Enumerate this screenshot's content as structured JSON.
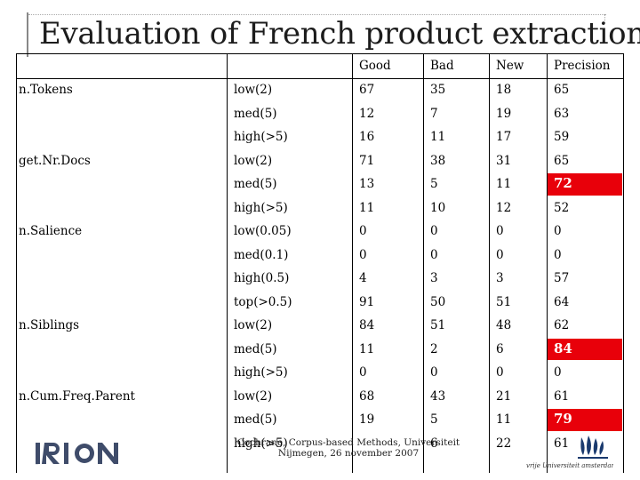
{
  "slide": {
    "title": "Evaluation of French product extraction",
    "footer_line1": "Cochrane, Corpus-based Methods, Universiteit",
    "footer_line2": "Nijmegen, 26 november 2007",
    "logo_left_text": "IRION",
    "logo_right_text": "vrije Universiteit amsterdam"
  },
  "table": {
    "headers": [
      "Good",
      "Bad",
      "New",
      "Precision"
    ],
    "groups": [
      {
        "name": "n.Tokens",
        "rows": [
          {
            "label": "low(2)",
            "values": [
              "67",
              "35",
              "18",
              "65"
            ]
          },
          {
            "label": "med(5)",
            "values": [
              "12",
              "7",
              "19",
              "63"
            ]
          },
          {
            "label": "high(>5)",
            "values": [
              "16",
              "11",
              "17",
              "59"
            ]
          }
        ]
      },
      {
        "name": "get.Nr.Docs",
        "rows": [
          {
            "label": "low(2)",
            "values": [
              "71",
              "38",
              "31",
              "65"
            ]
          },
          {
            "label": "med(5)",
            "values": [
              "13",
              "5",
              "11",
              "72"
            ]
          },
          {
            "label": "high(>5)",
            "values": [
              "11",
              "10",
              "12",
              "52"
            ]
          }
        ]
      },
      {
        "name": "n.Salience",
        "rows": [
          {
            "label": "low(0.05)",
            "values": [
              "0",
              "0",
              "0",
              "0"
            ]
          },
          {
            "label": "med(0.1)",
            "values": [
              "0",
              "0",
              "0",
              "0"
            ]
          },
          {
            "label": "high(0.5)",
            "values": [
              "4",
              "3",
              "3",
              "57"
            ]
          },
          {
            "label": "top(>0.5)",
            "values": [
              "91",
              "50",
              "51",
              "64"
            ]
          }
        ]
      },
      {
        "name": "n.Siblings",
        "rows": [
          {
            "label": "low(2)",
            "values": [
              "84",
              "51",
              "48",
              "62"
            ]
          },
          {
            "label": "med(5)",
            "values": [
              "11",
              "2",
              "6",
              "84"
            ]
          },
          {
            "label": "high(>5)",
            "values": [
              "0",
              "0",
              "0",
              "0"
            ]
          }
        ]
      },
      {
        "name": "n.Cum.Freq.Parent",
        "rows": [
          {
            "label": "low(2)",
            "values": [
              "68",
              "43",
              "21",
              "61"
            ]
          },
          {
            "label": "med(5)",
            "values": [
              "19",
              "5",
              "11",
              "79"
            ]
          },
          {
            "label": "high(>5)",
            "values": [
              "",
              "6",
              "22",
              "61"
            ]
          }
        ]
      }
    ],
    "highlighted": [
      {
        "group": 1,
        "row": 1,
        "color": "#e8000a"
      },
      {
        "group": 3,
        "row": 1,
        "color": "#e8000a"
      },
      {
        "group": 4,
        "row": 1,
        "color": "#e8000a"
      }
    ]
  }
}
